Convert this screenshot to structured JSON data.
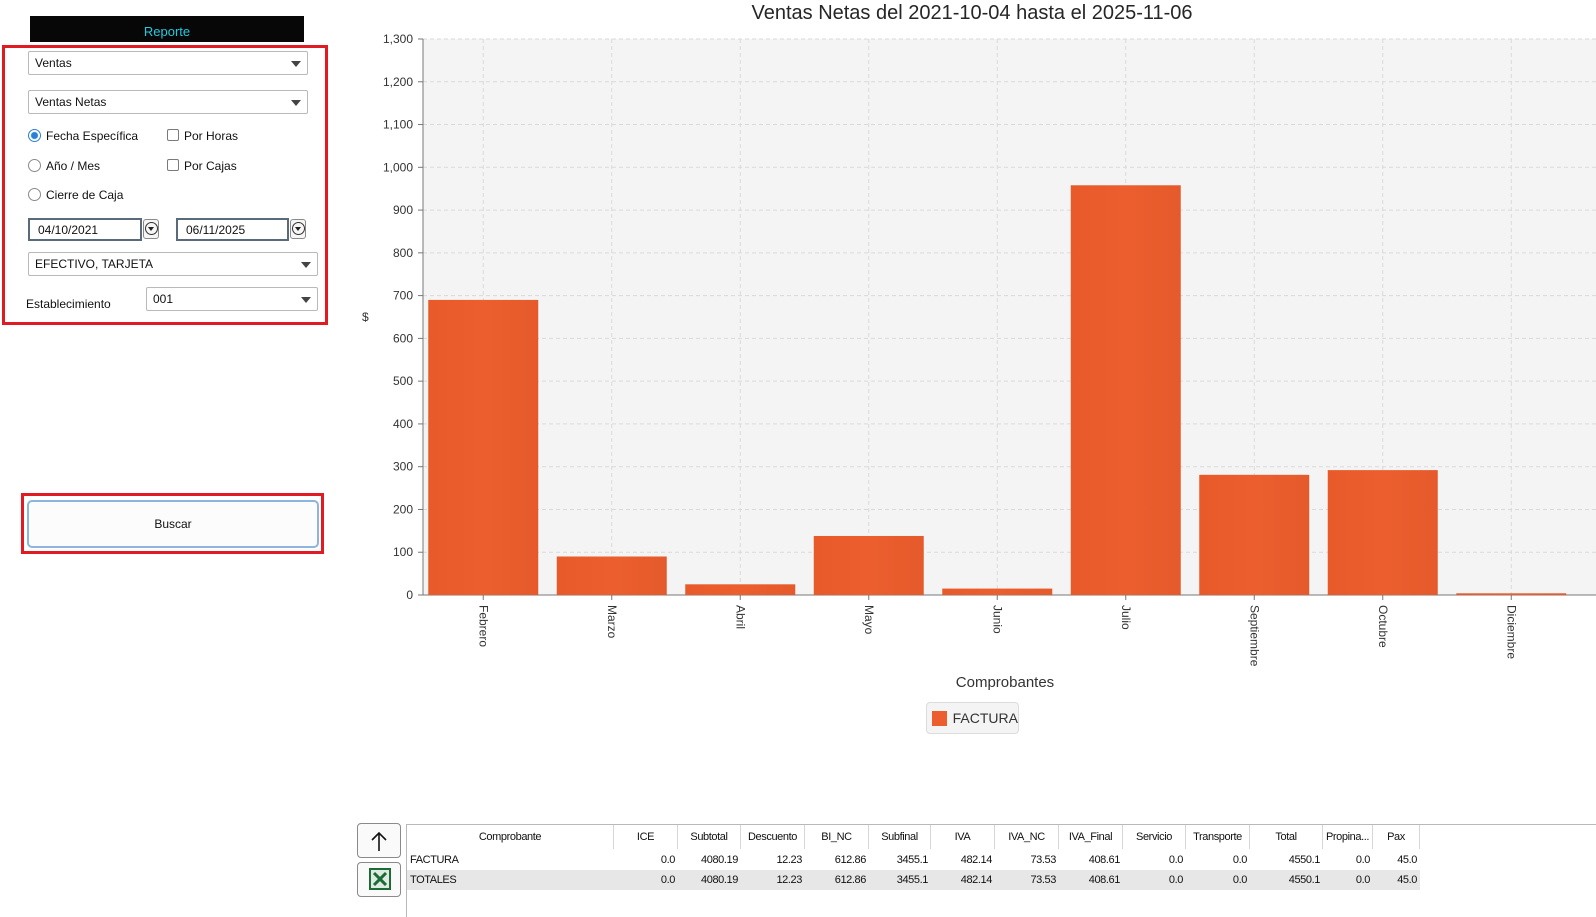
{
  "left_panel": {
    "tab_label": "Reporte",
    "report_type": "Ventas",
    "report_subtype": "Ventas Netas",
    "options": [
      {
        "label": "Fecha Específica",
        "kind": "radio",
        "checked": true
      },
      {
        "label": "Por Horas",
        "kind": "checkbox",
        "checked": false
      },
      {
        "label": "Año / Mes",
        "kind": "radio",
        "checked": false
      },
      {
        "label": "Por Cajas",
        "kind": "checkbox",
        "checked": false
      },
      {
        "label": "Cierre de Caja",
        "kind": "radio",
        "checked": false
      }
    ],
    "date_from": "04/10/2021",
    "date_to": "06/11/2025",
    "payment_methods": "EFECTIVO, TARJETA",
    "establishment_label": "Establecimiento",
    "establishment_value": "001",
    "search_button": "Buscar"
  },
  "chart_data": {
    "type": "bar",
    "title": "Ventas Netas del 2021-10-04 hasta el 2025-11-06",
    "xlabel": "Comprobantes",
    "ylabel": "$",
    "categories": [
      "Febrero",
      "Marzo",
      "Abril",
      "Mayo",
      "Junio",
      "Julio",
      "Septiembre",
      "Octubre",
      "Diciembre"
    ],
    "series": [
      {
        "name": "FACTURA",
        "values": [
          690,
          90,
          25,
          138,
          15,
          958,
          281,
          292,
          4
        ]
      }
    ],
    "ylim": [
      0,
      1300
    ],
    "yticks": [
      0,
      100,
      200,
      300,
      400,
      500,
      600,
      700,
      800,
      900,
      1000,
      1100,
      1200,
      1300
    ],
    "ytick_labels": [
      "0",
      "100",
      "200",
      "300",
      "400",
      "500",
      "600",
      "700",
      "800",
      "900",
      "1,000",
      "1,100",
      "1,200",
      "1,300"
    ],
    "grid": true,
    "legend_position": "bottom",
    "bar_color": "#ec5e2d",
    "plot_background": "#f4f4f4"
  },
  "table": {
    "columns": [
      "Comprobante",
      "ICE",
      "Subtotal",
      "Descuento",
      "BI_NC",
      "Subfinal",
      "IVA",
      "IVA_NC",
      "IVA_Final",
      "Servicio",
      "Transporte",
      "Total",
      "Propina...",
      "Pax"
    ],
    "rows": [
      [
        "FACTURA",
        "0.0",
        "4080.19",
        "12.23",
        "612.86",
        "3455.1",
        "482.14",
        "73.53",
        "408.61",
        "0.0",
        "0.0",
        "4550.1",
        "0.0",
        "45.0"
      ],
      [
        "TOTALES",
        "0.0",
        "4080.19",
        "12.23",
        "612.86",
        "3455.1",
        "482.14",
        "73.53",
        "408.61",
        "0.0",
        "0.0",
        "4550.1",
        "0.0",
        "45.0"
      ]
    ]
  },
  "side_buttons": {
    "up_icon": "arrow-up-icon",
    "excel_icon": "excel-icon"
  }
}
